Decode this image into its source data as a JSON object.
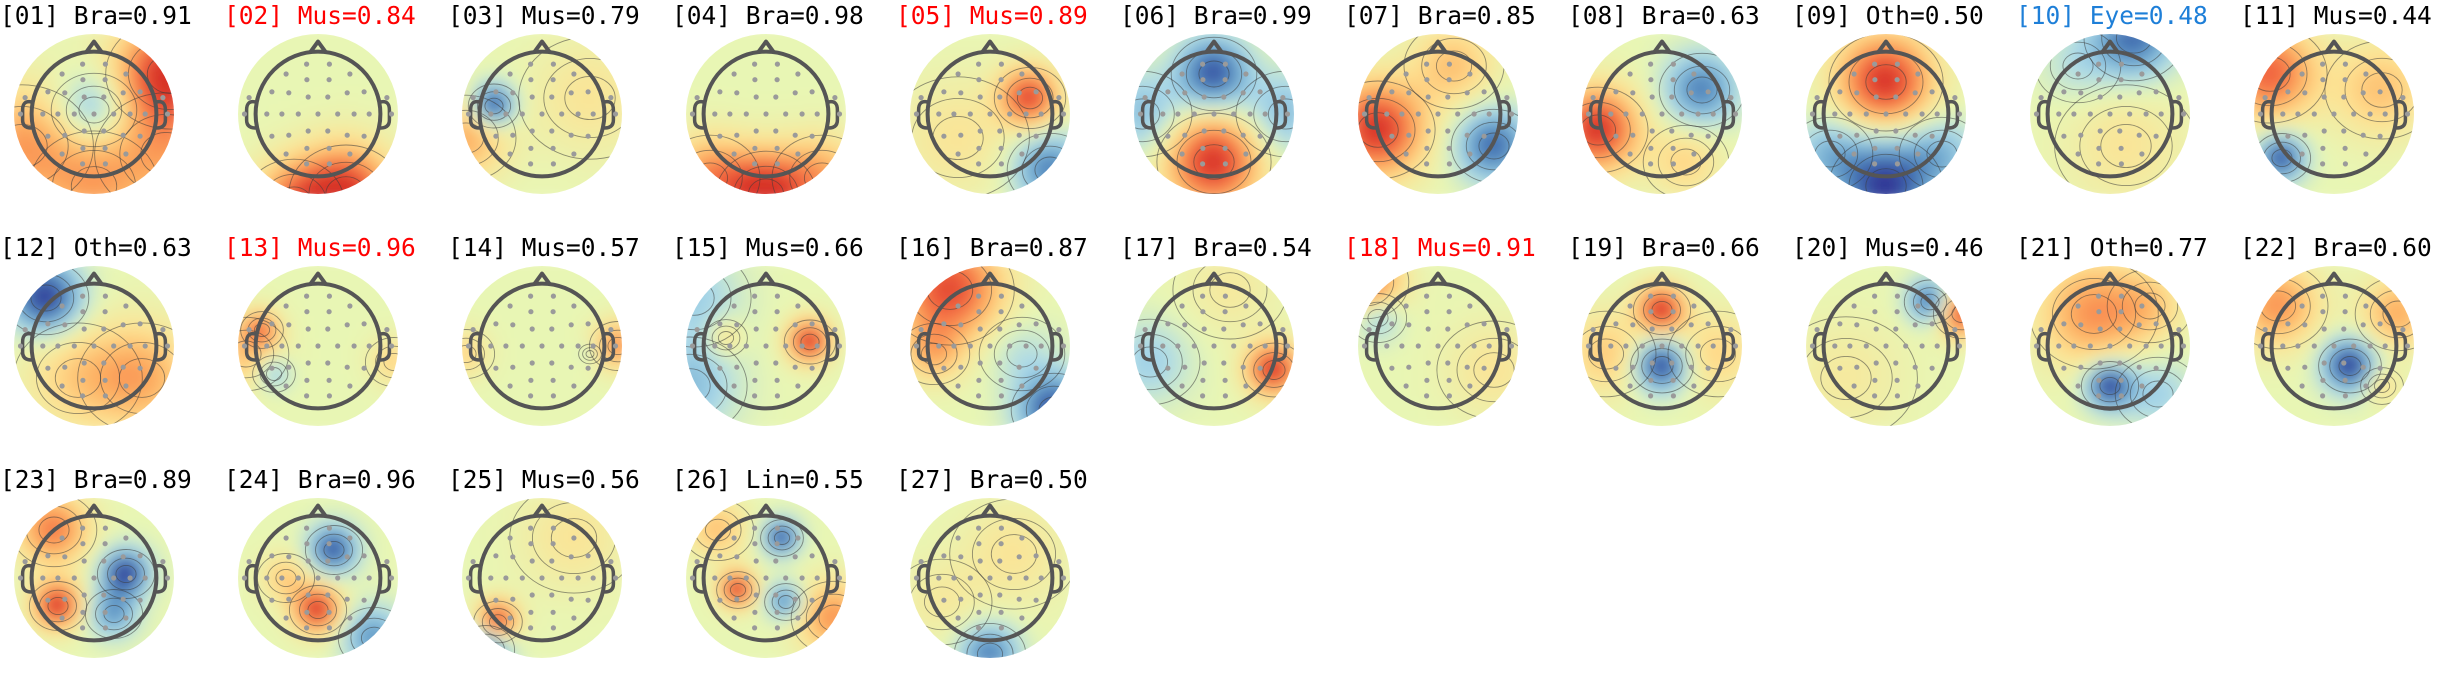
{
  "figure": {
    "colors": {
      "normal": "#000000",
      "muscle_highlight": "#ff0000",
      "eye_highlight": "#1e7fd8"
    }
  },
  "chart_data": {
    "type": "heatmap",
    "description_kind": "ICA component scalp topographies",
    "grid": {
      "rows": 3,
      "columns": 11
    },
    "colormap": "RdYlBu_r (red = positive, blue = negative)",
    "components": [
      {
        "id": "01",
        "label": "Bra",
        "value": 0.91,
        "title": "[01] Bra=0.91",
        "color": "#000000",
        "blobs": [
          {
            "x": 0.0,
            "y": -0.05,
            "s": 0.3,
            "a": -0.45
          },
          {
            "x": 0.95,
            "y": -0.5,
            "s": 0.45,
            "a": 1
          },
          {
            "x": -0.9,
            "y": 0.4,
            "s": 0.5,
            "a": 0.55
          },
          {
            "x": 0.9,
            "y": 0.5,
            "s": 0.5,
            "a": 0.45
          },
          {
            "x": 0,
            "y": 0.9,
            "s": 0.45,
            "a": 0.45
          }
        ]
      },
      {
        "id": "02",
        "label": "Mus",
        "value": 0.84,
        "title": "[02] Mus=0.84",
        "color": "#ff0000",
        "blobs": [
          {
            "x": 0.35,
            "y": 1.0,
            "s": 0.4,
            "a": 1
          },
          {
            "x": -0.3,
            "y": 1.1,
            "s": 0.35,
            "a": 0.6
          }
        ]
      },
      {
        "id": "03",
        "label": "Mus",
        "value": 0.79,
        "title": "[03] Mus=0.79",
        "color": "#000000",
        "blobs": [
          {
            "x": -0.6,
            "y": -0.1,
            "s": 0.18,
            "a": -1
          },
          {
            "x": -0.95,
            "y": 0.3,
            "s": 0.35,
            "a": 0.5
          },
          {
            "x": 0.6,
            "y": -0.2,
            "s": 0.5,
            "a": 0.2
          }
        ]
      },
      {
        "id": "04",
        "label": "Bra",
        "value": 0.98,
        "title": "[04] Bra=0.98",
        "color": "#000000",
        "blobs": [
          {
            "x": 0.0,
            "y": 1.0,
            "s": 0.35,
            "a": 1
          },
          {
            "x": -0.7,
            "y": 0.8,
            "s": 0.35,
            "a": 0.6
          },
          {
            "x": 0.7,
            "y": 0.8,
            "s": 0.35,
            "a": 0.5
          }
        ]
      },
      {
        "id": "05",
        "label": "Mus",
        "value": 0.89,
        "title": "[05] Mus=0.89",
        "color": "#ff0000",
        "blobs": [
          {
            "x": 0.5,
            "y": -0.2,
            "s": 0.25,
            "a": 0.9
          },
          {
            "x": 0.75,
            "y": 0.7,
            "s": 0.3,
            "a": -0.7
          },
          {
            "x": -0.4,
            "y": 0.3,
            "s": 0.5,
            "a": 0.2
          }
        ]
      },
      {
        "id": "06",
        "label": "Bra",
        "value": 0.99,
        "title": "[06] Bra=0.99",
        "color": "#000000",
        "blobs": [
          {
            "x": 0.0,
            "y": -0.5,
            "s": 0.3,
            "a": -0.9
          },
          {
            "x": 0.0,
            "y": 0.6,
            "s": 0.4,
            "a": 1
          },
          {
            "x": -0.9,
            "y": 0,
            "s": 0.35,
            "a": -0.4
          },
          {
            "x": 0.9,
            "y": 0,
            "s": 0.35,
            "a": -0.4
          }
        ]
      },
      {
        "id": "07",
        "label": "Bra",
        "value": 0.85,
        "title": "[07] Bra=0.85",
        "color": "#000000",
        "blobs": [
          {
            "x": -0.75,
            "y": 0.2,
            "s": 0.4,
            "a": 1
          },
          {
            "x": 0.7,
            "y": 0.4,
            "s": 0.3,
            "a": -0.8
          },
          {
            "x": 0.2,
            "y": -0.6,
            "s": 0.35,
            "a": 0.4
          }
        ]
      },
      {
        "id": "08",
        "label": "Bra",
        "value": 0.63,
        "title": "[08] Bra=0.63",
        "color": "#000000",
        "blobs": [
          {
            "x": -0.8,
            "y": 0.2,
            "s": 0.35,
            "a": 1
          },
          {
            "x": 0.5,
            "y": -0.3,
            "s": 0.3,
            "a": -0.7
          },
          {
            "x": 0.3,
            "y": 0.6,
            "s": 0.3,
            "a": 0.3
          }
        ]
      },
      {
        "id": "09",
        "label": "Oth",
        "value": 0.5,
        "title": "[09] Oth=0.50",
        "color": "#000000",
        "blobs": [
          {
            "x": 0.0,
            "y": -0.4,
            "s": 0.4,
            "a": 1
          },
          {
            "x": 0.0,
            "y": 0.9,
            "s": 0.4,
            "a": -1
          },
          {
            "x": -0.7,
            "y": 0.5,
            "s": 0.3,
            "a": -0.4
          },
          {
            "x": 0.7,
            "y": 0.5,
            "s": 0.3,
            "a": -0.4
          }
        ]
      },
      {
        "id": "10",
        "label": "Eye",
        "value": 0.48,
        "title": "[10] Eye=0.48",
        "color": "#1e7fd8",
        "blobs": [
          {
            "x": 0.3,
            "y": -0.95,
            "s": 0.35,
            "a": -0.8
          },
          {
            "x": -0.4,
            "y": -0.6,
            "s": 0.3,
            "a": -0.2
          },
          {
            "x": 0.2,
            "y": 0.4,
            "s": 0.5,
            "a": 0.2
          }
        ]
      },
      {
        "id": "11",
        "label": "Mus",
        "value": 0.44,
        "title": "[11] Mus=0.44",
        "color": "#000000",
        "blobs": [
          {
            "x": -0.65,
            "y": 0.55,
            "s": 0.2,
            "a": -0.9
          },
          {
            "x": -0.8,
            "y": -0.5,
            "s": 0.4,
            "a": 0.8
          },
          {
            "x": 0.6,
            "y": -0.3,
            "s": 0.4,
            "a": 0.4
          }
        ]
      },
      {
        "id": "12",
        "label": "Oth",
        "value": 0.63,
        "title": "[12] Oth=0.63",
        "color": "#000000",
        "blobs": [
          {
            "x": -0.6,
            "y": -0.6,
            "s": 0.3,
            "a": -1
          },
          {
            "x": 0.6,
            "y": 0.4,
            "s": 0.45,
            "a": 0.5
          },
          {
            "x": -0.2,
            "y": 0.4,
            "s": 0.45,
            "a": 0.3
          }
        ]
      },
      {
        "id": "13",
        "label": "Mus",
        "value": 0.96,
        "title": "[13] Mus=0.96",
        "color": "#ff0000",
        "blobs": [
          {
            "x": -0.7,
            "y": -0.2,
            "s": 0.15,
            "a": 0.6
          },
          {
            "x": -0.55,
            "y": 0.35,
            "s": 0.15,
            "a": -0.4
          },
          {
            "x": -0.9,
            "y": 0.1,
            "s": 0.3,
            "a": 0.4
          },
          {
            "x": 0.95,
            "y": 0.2,
            "s": 0.2,
            "a": 0.3
          }
        ]
      },
      {
        "id": "14",
        "label": "Mus",
        "value": 0.57,
        "title": "[14] Mus=0.57",
        "color": "#000000",
        "blobs": [
          {
            "x": 0.95,
            "y": 0.0,
            "s": 0.2,
            "a": 0.6
          },
          {
            "x": -0.95,
            "y": 0.1,
            "s": 0.2,
            "a": 0.3
          },
          {
            "x": 0.6,
            "y": 0.1,
            "s": 0.08,
            "a": -0.2
          }
        ]
      },
      {
        "id": "15",
        "label": "Mus",
        "value": 0.66,
        "title": "[15] Mus=0.66",
        "color": "#000000",
        "blobs": [
          {
            "x": 0.55,
            "y": -0.05,
            "s": 0.18,
            "a": 1
          },
          {
            "x": -0.95,
            "y": 0.5,
            "s": 0.4,
            "a": -0.4
          },
          {
            "x": -0.9,
            "y": -0.6,
            "s": 0.4,
            "a": -0.3
          },
          {
            "x": -0.5,
            "y": -0.1,
            "s": 0.15,
            "a": 0.35
          }
        ]
      },
      {
        "id": "16",
        "label": "Bra",
        "value": 0.87,
        "title": "[16] Bra=0.87",
        "color": "#000000",
        "blobs": [
          {
            "x": -0.5,
            "y": -0.7,
            "s": 0.45,
            "a": 0.9
          },
          {
            "x": 0.8,
            "y": 0.8,
            "s": 0.3,
            "a": -0.9
          },
          {
            "x": 0.4,
            "y": 0.1,
            "s": 0.3,
            "a": -0.2
          },
          {
            "x": -0.7,
            "y": 0.1,
            "s": 0.25,
            "a": 0.4
          }
        ]
      },
      {
        "id": "17",
        "label": "Bra",
        "value": 0.54,
        "title": "[17] Bra=0.54",
        "color": "#000000",
        "blobs": [
          {
            "x": 0.75,
            "y": 0.3,
            "s": 0.22,
            "a": 1
          },
          {
            "x": -0.8,
            "y": 0.2,
            "s": 0.35,
            "a": -0.3
          },
          {
            "x": 0.2,
            "y": -0.7,
            "s": 0.4,
            "a": 0.15
          }
        ]
      },
      {
        "id": "18",
        "label": "Mus",
        "value": 0.91,
        "title": "[18] Mus=0.91",
        "color": "#ff0000",
        "blobs": [
          {
            "x": -0.75,
            "y": -0.35,
            "s": 0.2,
            "a": -0.4
          },
          {
            "x": -0.9,
            "y": -0.8,
            "s": 0.3,
            "a": 0.8
          },
          {
            "x": 0.7,
            "y": 0.3,
            "s": 0.4,
            "a": 0.2
          }
        ]
      },
      {
        "id": "19",
        "label": "Bra",
        "value": 0.66,
        "title": "[19] Bra=0.66",
        "color": "#000000",
        "blobs": [
          {
            "x": 0.0,
            "y": -0.45,
            "s": 0.2,
            "a": 1
          },
          {
            "x": 0.0,
            "y": 0.25,
            "s": 0.22,
            "a": -1
          },
          {
            "x": -0.7,
            "y": 0.1,
            "s": 0.35,
            "a": 0.35
          },
          {
            "x": 0.7,
            "y": 0.1,
            "s": 0.35,
            "a": 0.3
          }
        ]
      },
      {
        "id": "20",
        "label": "Mus",
        "value": 0.46,
        "title": "[20] Mus=0.46",
        "color": "#000000",
        "blobs": [
          {
            "x": 0.55,
            "y": -0.55,
            "s": 0.18,
            "a": -0.8
          },
          {
            "x": 0.95,
            "y": -0.4,
            "s": 0.2,
            "a": 0.9
          },
          {
            "x": -0.5,
            "y": 0.4,
            "s": 0.5,
            "a": 0.15
          }
        ]
      },
      {
        "id": "21",
        "label": "Oth",
        "value": 0.77,
        "title": "[21] Oth=0.77",
        "color": "#000000",
        "blobs": [
          {
            "x": 0.0,
            "y": 0.5,
            "s": 0.2,
            "a": -1
          },
          {
            "x": -0.2,
            "y": -0.4,
            "s": 0.45,
            "a": 0.6
          },
          {
            "x": 0.5,
            "y": -0.5,
            "s": 0.3,
            "a": 0.3
          },
          {
            "x": 0.6,
            "y": 0.6,
            "s": 0.3,
            "a": -0.3
          }
        ]
      },
      {
        "id": "22",
        "label": "Bra",
        "value": 0.6,
        "title": "[22] Bra=0.60",
        "color": "#000000",
        "blobs": [
          {
            "x": 0.2,
            "y": 0.25,
            "s": 0.22,
            "a": -1
          },
          {
            "x": -0.7,
            "y": -0.5,
            "s": 0.35,
            "a": 0.6
          },
          {
            "x": 0.8,
            "y": -0.4,
            "s": 0.3,
            "a": 0.5
          },
          {
            "x": 0.6,
            "y": 0.5,
            "s": 0.15,
            "a": 0.3
          }
        ]
      },
      {
        "id": "23",
        "label": "Bra",
        "value": 0.89,
        "title": "[23] Bra=0.89",
        "color": "#000000",
        "blobs": [
          {
            "x": -0.45,
            "y": 0.35,
            "s": 0.2,
            "a": 1
          },
          {
            "x": 0.4,
            "y": -0.05,
            "s": 0.2,
            "a": -1
          },
          {
            "x": 0.25,
            "y": 0.45,
            "s": 0.2,
            "a": -0.6
          },
          {
            "x": -0.5,
            "y": -0.6,
            "s": 0.3,
            "a": 0.7
          }
        ]
      },
      {
        "id": "24",
        "label": "Bra",
        "value": 0.96,
        "title": "[24] Bra=0.96",
        "color": "#000000",
        "blobs": [
          {
            "x": 0.2,
            "y": -0.35,
            "s": 0.2,
            "a": -0.9
          },
          {
            "x": 0.0,
            "y": 0.4,
            "s": 0.2,
            "a": 1
          },
          {
            "x": 0.7,
            "y": 0.75,
            "s": 0.25,
            "a": -0.6
          },
          {
            "x": -0.4,
            "y": 0.0,
            "s": 0.2,
            "a": 0.35
          }
        ]
      },
      {
        "id": "25",
        "label": "Mus",
        "value": 0.56,
        "title": "[25] Mus=0.56",
        "color": "#000000",
        "blobs": [
          {
            "x": -0.55,
            "y": 0.55,
            "s": 0.17,
            "a": 1
          },
          {
            "x": -0.7,
            "y": 0.9,
            "s": 0.2,
            "a": -0.9
          },
          {
            "x": 0.4,
            "y": -0.5,
            "s": 0.45,
            "a": 0.2
          }
        ]
      },
      {
        "id": "26",
        "label": "Lin",
        "value": 0.55,
        "title": "[26] Lin=0.55",
        "color": "#000000",
        "blobs": [
          {
            "x": 0.2,
            "y": -0.5,
            "s": 0.15,
            "a": -0.9
          },
          {
            "x": -0.35,
            "y": 0.15,
            "s": 0.15,
            "a": 1
          },
          {
            "x": 0.25,
            "y": 0.3,
            "s": 0.15,
            "a": -0.7
          },
          {
            "x": 0.85,
            "y": 0.5,
            "s": 0.3,
            "a": 0.6
          },
          {
            "x": -0.6,
            "y": -0.6,
            "s": 0.25,
            "a": 0.4
          }
        ]
      },
      {
        "id": "27",
        "label": "Bra",
        "value": 0.5,
        "title": "[27] Bra=0.50",
        "color": "#000000",
        "blobs": [
          {
            "x": 0.0,
            "y": 0.95,
            "s": 0.25,
            "a": -0.7
          },
          {
            "x": 0.3,
            "y": -0.3,
            "s": 0.45,
            "a": 0.2
          },
          {
            "x": -0.6,
            "y": 0.3,
            "s": 0.35,
            "a": 0.15
          }
        ]
      }
    ]
  }
}
